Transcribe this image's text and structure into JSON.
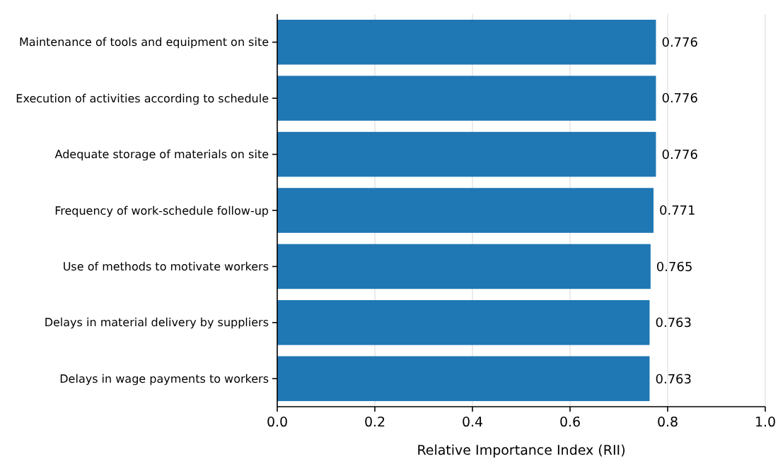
{
  "chart_data": {
    "type": "bar",
    "orientation": "horizontal",
    "xlabel": "Relative Importance Index (RII)",
    "categories": [
      "Maintenance of tools and equipment on site",
      "Execution of activities according to schedule",
      "Adequate storage of materials on site",
      "Frequency of work-schedule follow-up",
      "Use of methods to motivate workers",
      "Delays in material delivery by suppliers",
      "Delays in wage payments to workers"
    ],
    "values": [
      0.776,
      0.776,
      0.776,
      0.771,
      0.765,
      0.763,
      0.763
    ],
    "color": "#1f77b4",
    "xlim": [
      0,
      1
    ],
    "xticks": [
      {
        "value": 0,
        "label": "0.0"
      },
      0.2,
      0.4,
      0.6,
      0.8,
      {
        "value": 1,
        "label": "1.0"
      }
    ],
    "grid": "x",
    "data_labels": true
  }
}
